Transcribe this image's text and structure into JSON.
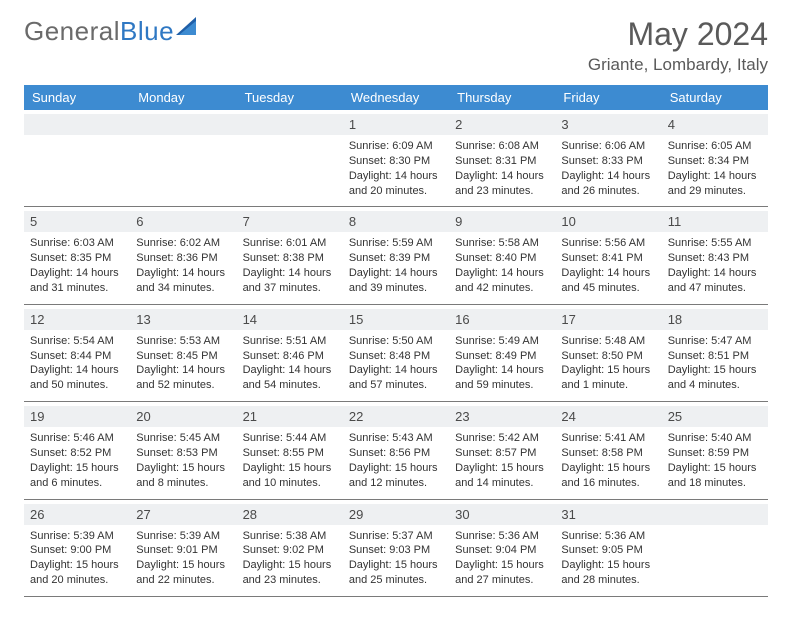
{
  "branding": {
    "logo_part1": "General",
    "logo_part2": "Blue"
  },
  "header": {
    "month_title": "May 2024",
    "location": "Griante, Lombardy, Italy"
  },
  "colors": {
    "header_bar": "#3d8bd1",
    "daynum_bg": "#eef0f2",
    "logo_gray": "#6a6a6a",
    "logo_blue": "#2f78c3",
    "text": "#333333",
    "border": "#7a7a7a"
  },
  "day_names": [
    "Sunday",
    "Monday",
    "Tuesday",
    "Wednesday",
    "Thursday",
    "Friday",
    "Saturday"
  ],
  "weeks": [
    [
      {
        "day": "",
        "sunrise": "",
        "sunset": "",
        "daylight": ""
      },
      {
        "day": "",
        "sunrise": "",
        "sunset": "",
        "daylight": ""
      },
      {
        "day": "",
        "sunrise": "",
        "sunset": "",
        "daylight": ""
      },
      {
        "day": "1",
        "sunrise": "Sunrise: 6:09 AM",
        "sunset": "Sunset: 8:30 PM",
        "daylight": "Daylight: 14 hours and 20 minutes."
      },
      {
        "day": "2",
        "sunrise": "Sunrise: 6:08 AM",
        "sunset": "Sunset: 8:31 PM",
        "daylight": "Daylight: 14 hours and 23 minutes."
      },
      {
        "day": "3",
        "sunrise": "Sunrise: 6:06 AM",
        "sunset": "Sunset: 8:33 PM",
        "daylight": "Daylight: 14 hours and 26 minutes."
      },
      {
        "day": "4",
        "sunrise": "Sunrise: 6:05 AM",
        "sunset": "Sunset: 8:34 PM",
        "daylight": "Daylight: 14 hours and 29 minutes."
      }
    ],
    [
      {
        "day": "5",
        "sunrise": "Sunrise: 6:03 AM",
        "sunset": "Sunset: 8:35 PM",
        "daylight": "Daylight: 14 hours and 31 minutes."
      },
      {
        "day": "6",
        "sunrise": "Sunrise: 6:02 AM",
        "sunset": "Sunset: 8:36 PM",
        "daylight": "Daylight: 14 hours and 34 minutes."
      },
      {
        "day": "7",
        "sunrise": "Sunrise: 6:01 AM",
        "sunset": "Sunset: 8:38 PM",
        "daylight": "Daylight: 14 hours and 37 minutes."
      },
      {
        "day": "8",
        "sunrise": "Sunrise: 5:59 AM",
        "sunset": "Sunset: 8:39 PM",
        "daylight": "Daylight: 14 hours and 39 minutes."
      },
      {
        "day": "9",
        "sunrise": "Sunrise: 5:58 AM",
        "sunset": "Sunset: 8:40 PM",
        "daylight": "Daylight: 14 hours and 42 minutes."
      },
      {
        "day": "10",
        "sunrise": "Sunrise: 5:56 AM",
        "sunset": "Sunset: 8:41 PM",
        "daylight": "Daylight: 14 hours and 45 minutes."
      },
      {
        "day": "11",
        "sunrise": "Sunrise: 5:55 AM",
        "sunset": "Sunset: 8:43 PM",
        "daylight": "Daylight: 14 hours and 47 minutes."
      }
    ],
    [
      {
        "day": "12",
        "sunrise": "Sunrise: 5:54 AM",
        "sunset": "Sunset: 8:44 PM",
        "daylight": "Daylight: 14 hours and 50 minutes."
      },
      {
        "day": "13",
        "sunrise": "Sunrise: 5:53 AM",
        "sunset": "Sunset: 8:45 PM",
        "daylight": "Daylight: 14 hours and 52 minutes."
      },
      {
        "day": "14",
        "sunrise": "Sunrise: 5:51 AM",
        "sunset": "Sunset: 8:46 PM",
        "daylight": "Daylight: 14 hours and 54 minutes."
      },
      {
        "day": "15",
        "sunrise": "Sunrise: 5:50 AM",
        "sunset": "Sunset: 8:48 PM",
        "daylight": "Daylight: 14 hours and 57 minutes."
      },
      {
        "day": "16",
        "sunrise": "Sunrise: 5:49 AM",
        "sunset": "Sunset: 8:49 PM",
        "daylight": "Daylight: 14 hours and 59 minutes."
      },
      {
        "day": "17",
        "sunrise": "Sunrise: 5:48 AM",
        "sunset": "Sunset: 8:50 PM",
        "daylight": "Daylight: 15 hours and 1 minute."
      },
      {
        "day": "18",
        "sunrise": "Sunrise: 5:47 AM",
        "sunset": "Sunset: 8:51 PM",
        "daylight": "Daylight: 15 hours and 4 minutes."
      }
    ],
    [
      {
        "day": "19",
        "sunrise": "Sunrise: 5:46 AM",
        "sunset": "Sunset: 8:52 PM",
        "daylight": "Daylight: 15 hours and 6 minutes."
      },
      {
        "day": "20",
        "sunrise": "Sunrise: 5:45 AM",
        "sunset": "Sunset: 8:53 PM",
        "daylight": "Daylight: 15 hours and 8 minutes."
      },
      {
        "day": "21",
        "sunrise": "Sunrise: 5:44 AM",
        "sunset": "Sunset: 8:55 PM",
        "daylight": "Daylight: 15 hours and 10 minutes."
      },
      {
        "day": "22",
        "sunrise": "Sunrise: 5:43 AM",
        "sunset": "Sunset: 8:56 PM",
        "daylight": "Daylight: 15 hours and 12 minutes."
      },
      {
        "day": "23",
        "sunrise": "Sunrise: 5:42 AM",
        "sunset": "Sunset: 8:57 PM",
        "daylight": "Daylight: 15 hours and 14 minutes."
      },
      {
        "day": "24",
        "sunrise": "Sunrise: 5:41 AM",
        "sunset": "Sunset: 8:58 PM",
        "daylight": "Daylight: 15 hours and 16 minutes."
      },
      {
        "day": "25",
        "sunrise": "Sunrise: 5:40 AM",
        "sunset": "Sunset: 8:59 PM",
        "daylight": "Daylight: 15 hours and 18 minutes."
      }
    ],
    [
      {
        "day": "26",
        "sunrise": "Sunrise: 5:39 AM",
        "sunset": "Sunset: 9:00 PM",
        "daylight": "Daylight: 15 hours and 20 minutes."
      },
      {
        "day": "27",
        "sunrise": "Sunrise: 5:39 AM",
        "sunset": "Sunset: 9:01 PM",
        "daylight": "Daylight: 15 hours and 22 minutes."
      },
      {
        "day": "28",
        "sunrise": "Sunrise: 5:38 AM",
        "sunset": "Sunset: 9:02 PM",
        "daylight": "Daylight: 15 hours and 23 minutes."
      },
      {
        "day": "29",
        "sunrise": "Sunrise: 5:37 AM",
        "sunset": "Sunset: 9:03 PM",
        "daylight": "Daylight: 15 hours and 25 minutes."
      },
      {
        "day": "30",
        "sunrise": "Sunrise: 5:36 AM",
        "sunset": "Sunset: 9:04 PM",
        "daylight": "Daylight: 15 hours and 27 minutes."
      },
      {
        "day": "31",
        "sunrise": "Sunrise: 5:36 AM",
        "sunset": "Sunset: 9:05 PM",
        "daylight": "Daylight: 15 hours and 28 minutes."
      },
      {
        "day": "",
        "sunrise": "",
        "sunset": "",
        "daylight": ""
      }
    ]
  ]
}
